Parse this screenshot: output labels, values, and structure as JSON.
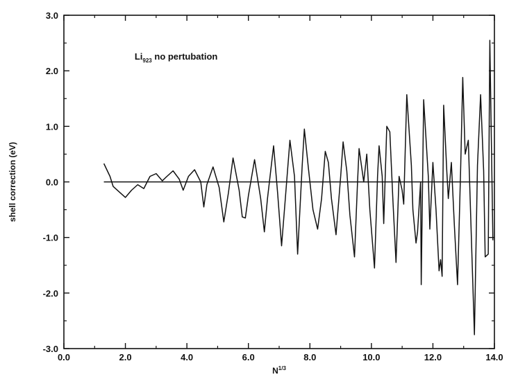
{
  "chart_data": {
    "type": "line",
    "title": "",
    "xlabel": "N",
    "xlabel_superscript": "1/3",
    "ylabel": "shell correction (eV)",
    "xlim": [
      0.0,
      14.0
    ],
    "ylim": [
      -3.0,
      3.0
    ],
    "x_ticks": [
      "0.0",
      "2.0",
      "4.0",
      "6.0",
      "8.0",
      "10.0",
      "12.0",
      "14.0"
    ],
    "y_ticks": [
      "3.0",
      "2.0",
      "1.0",
      "0.0",
      "-1.0",
      "-2.0",
      "-3.0"
    ],
    "grid": false,
    "annotation": {
      "text": "Li",
      "subscript": "923",
      "suffix": " no pertubation",
      "x": 2.3,
      "y": 2.2
    },
    "reference_line": {
      "y": 0.0,
      "x_start": 1.3,
      "x_end": 13.8
    },
    "series": [
      {
        "values_xy": [
          [
            1.3,
            0.33
          ],
          [
            1.5,
            0.1
          ],
          [
            1.6,
            -0.08
          ],
          [
            1.8,
            -0.18
          ],
          [
            2.0,
            -0.28
          ],
          [
            2.2,
            -0.15
          ],
          [
            2.4,
            -0.05
          ],
          [
            2.6,
            -0.12
          ],
          [
            2.8,
            0.1
          ],
          [
            3.0,
            0.15
          ],
          [
            3.2,
            0.02
          ],
          [
            3.35,
            0.1
          ],
          [
            3.55,
            0.2
          ],
          [
            3.75,
            0.05
          ],
          [
            3.88,
            -0.15
          ],
          [
            4.05,
            0.1
          ],
          [
            4.25,
            0.22
          ],
          [
            4.45,
            0.0
          ],
          [
            4.55,
            -0.45
          ],
          [
            4.65,
            -0.05
          ],
          [
            4.85,
            0.27
          ],
          [
            5.05,
            -0.1
          ],
          [
            5.2,
            -0.72
          ],
          [
            5.35,
            -0.2
          ],
          [
            5.5,
            0.43
          ],
          [
            5.7,
            -0.15
          ],
          [
            5.8,
            -0.63
          ],
          [
            5.9,
            -0.65
          ],
          [
            6.0,
            -0.25
          ],
          [
            6.2,
            0.4
          ],
          [
            6.4,
            -0.3
          ],
          [
            6.52,
            -0.9
          ],
          [
            6.62,
            -0.3
          ],
          [
            6.82,
            0.65
          ],
          [
            6.95,
            -0.2
          ],
          [
            7.08,
            -1.15
          ],
          [
            7.2,
            -0.3
          ],
          [
            7.35,
            0.75
          ],
          [
            7.5,
            0.1
          ],
          [
            7.6,
            -1.3
          ],
          [
            7.75,
            0.3
          ],
          [
            7.82,
            0.95
          ],
          [
            7.95,
            0.25
          ],
          [
            8.1,
            -0.5
          ],
          [
            8.25,
            -0.85
          ],
          [
            8.38,
            -0.3
          ],
          [
            8.5,
            0.55
          ],
          [
            8.6,
            0.35
          ],
          [
            8.7,
            -0.3
          ],
          [
            8.85,
            -0.95
          ],
          [
            9.0,
            0.1
          ],
          [
            9.08,
            0.72
          ],
          [
            9.2,
            0.2
          ],
          [
            9.3,
            -0.6
          ],
          [
            9.45,
            -1.35
          ],
          [
            9.55,
            0.0
          ],
          [
            9.6,
            0.6
          ],
          [
            9.75,
            0.0
          ],
          [
            9.85,
            0.5
          ],
          [
            9.95,
            -0.5
          ],
          [
            10.1,
            -1.55
          ],
          [
            10.2,
            0.1
          ],
          [
            10.25,
            0.65
          ],
          [
            10.35,
            0.1
          ],
          [
            10.4,
            -0.75
          ],
          [
            10.5,
            1.0
          ],
          [
            10.6,
            0.9
          ],
          [
            10.7,
            -0.35
          ],
          [
            10.8,
            -1.45
          ],
          [
            10.9,
            0.1
          ],
          [
            11.0,
            -0.15
          ],
          [
            11.05,
            -0.4
          ],
          [
            11.15,
            1.57
          ],
          [
            11.3,
            0.3
          ],
          [
            11.35,
            -0.5
          ],
          [
            11.45,
            -1.1
          ],
          [
            11.5,
            -0.9
          ],
          [
            11.6,
            0.0
          ],
          [
            11.62,
            -1.85
          ],
          [
            11.7,
            1.48
          ],
          [
            11.85,
            0.1
          ],
          [
            11.9,
            -0.85
          ],
          [
            12.0,
            0.35
          ],
          [
            12.1,
            -0.5
          ],
          [
            12.2,
            -1.6
          ],
          [
            12.25,
            -1.4
          ],
          [
            12.3,
            -1.7
          ],
          [
            12.35,
            1.38
          ],
          [
            12.45,
            0.2
          ],
          [
            12.5,
            -0.3
          ],
          [
            12.6,
            0.35
          ],
          [
            12.7,
            -0.8
          ],
          [
            12.8,
            -1.85
          ],
          [
            12.9,
            0.2
          ],
          [
            12.97,
            1.88
          ],
          [
            13.05,
            0.5
          ],
          [
            13.15,
            0.75
          ],
          [
            13.25,
            -1.0
          ],
          [
            13.35,
            -2.75
          ],
          [
            13.45,
            0.3
          ],
          [
            13.55,
            1.57
          ],
          [
            13.65,
            0.2
          ],
          [
            13.7,
            -1.35
          ],
          [
            13.8,
            -1.3
          ],
          [
            13.85,
            2.55
          ],
          [
            13.95,
            -1.05
          ]
        ]
      }
    ]
  }
}
